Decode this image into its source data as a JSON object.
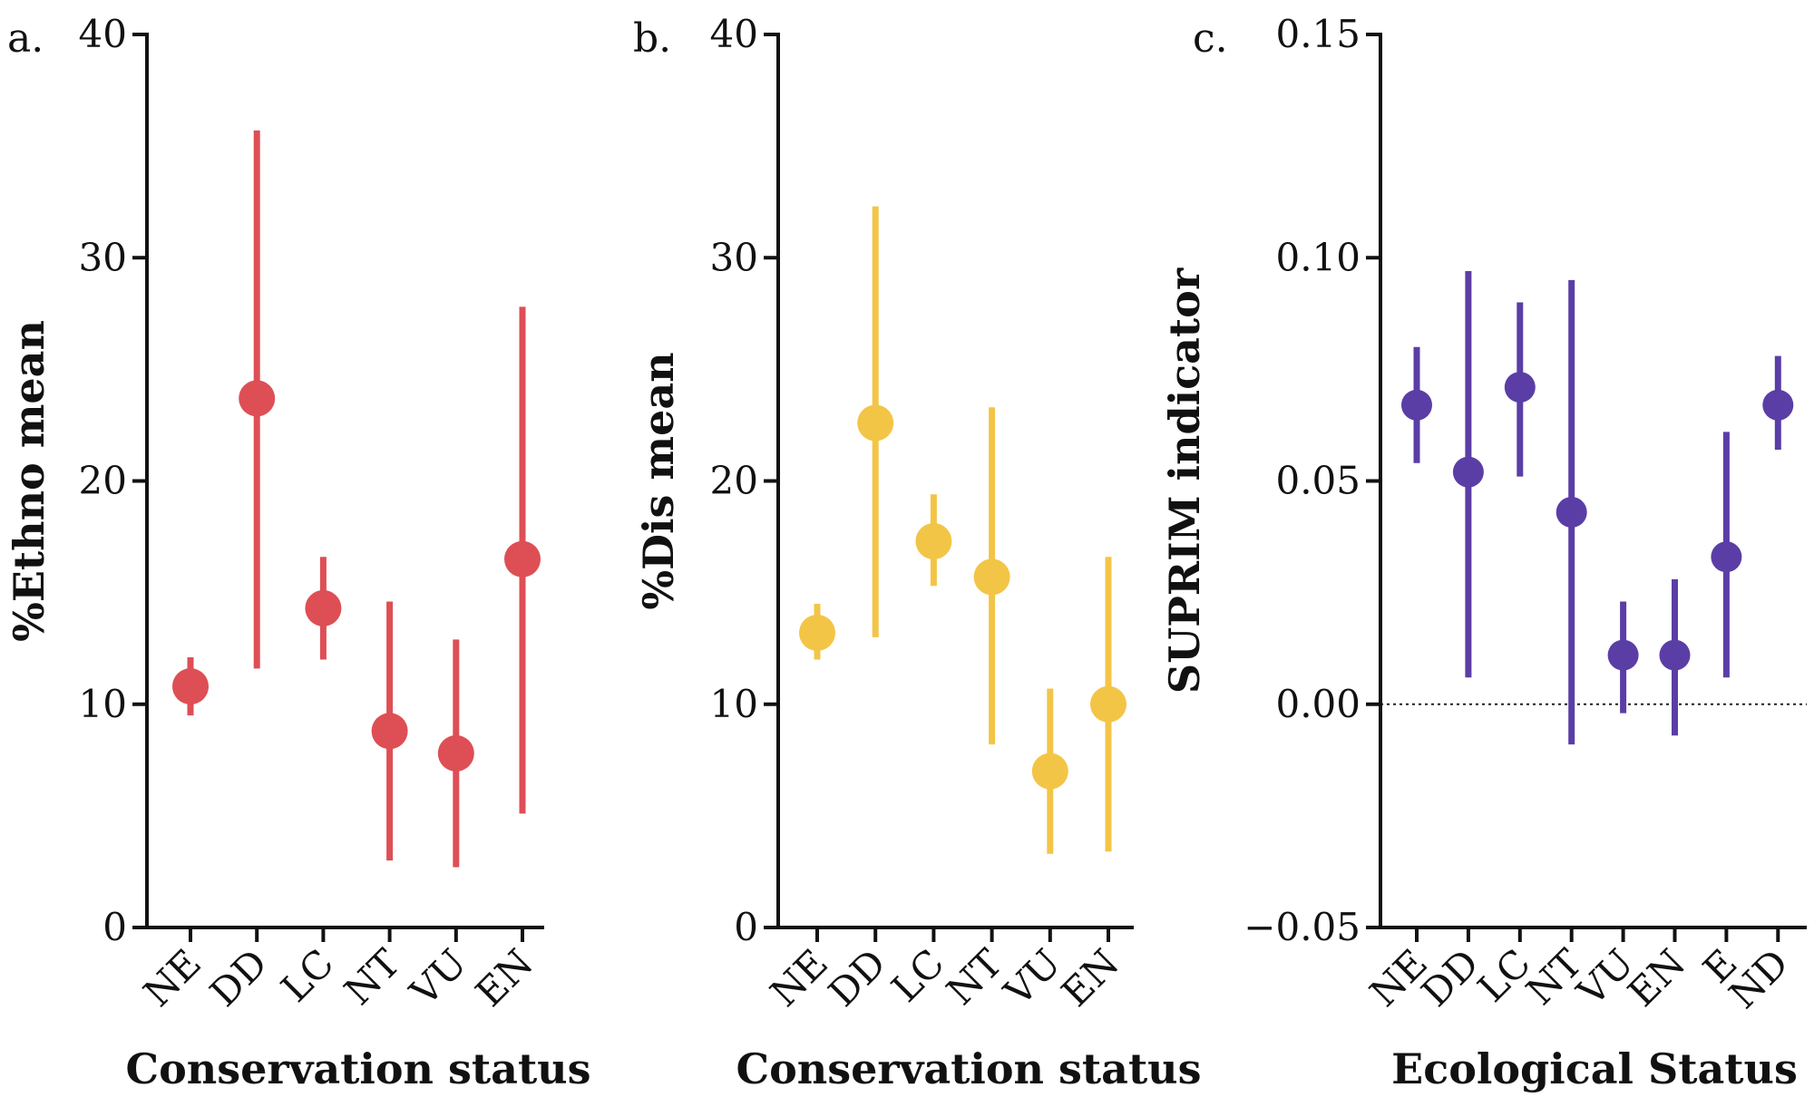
{
  "chart_data": [
    {
      "type": "scatter",
      "panel_label": "a.",
      "xlabel": "Conservation status",
      "ylabel": "%Ethno mean",
      "ylim": [
        0,
        40
      ],
      "yticks": [
        "0",
        "10",
        "20",
        "30",
        "40"
      ],
      "tick_values": [
        0,
        10,
        20,
        30,
        40
      ],
      "categories": [
        "NE",
        "DD",
        "LC",
        "NT",
        "VU",
        "EN"
      ],
      "values": [
        10.8,
        23.7,
        14.3,
        8.8,
        7.8,
        16.5
      ],
      "err_low": [
        9.5,
        11.6,
        12.0,
        3.0,
        2.7,
        5.1
      ],
      "err_high": [
        12.1,
        35.7,
        16.6,
        14.6,
        12.9,
        27.8
      ],
      "color": "#dd4f55",
      "zero_line": false
    },
    {
      "type": "scatter",
      "panel_label": "b.",
      "xlabel": "Conservation status",
      "ylabel": "%Dis mean",
      "ylim": [
        0,
        40
      ],
      "yticks": [
        "0",
        "10",
        "20",
        "30",
        "40"
      ],
      "tick_values": [
        0,
        10,
        20,
        30,
        40
      ],
      "categories": [
        "NE",
        "DD",
        "LC",
        "NT",
        "VU",
        "EN"
      ],
      "values": [
        13.2,
        22.6,
        17.3,
        15.7,
        7.0,
        10.0
      ],
      "err_low": [
        12.0,
        13.0,
        15.3,
        8.2,
        3.3,
        3.4
      ],
      "err_high": [
        14.5,
        32.3,
        19.4,
        23.3,
        10.7,
        16.6
      ],
      "color": "#f3c547",
      "zero_line": false
    },
    {
      "type": "scatter",
      "panel_label": "c.",
      "xlabel": "Ecological Status",
      "ylabel": "SUPRIM indicator",
      "ylim": [
        -0.05,
        0.15
      ],
      "yticks": [
        "−0.05",
        "0.00",
        "0.05",
        "0.10",
        "0.15"
      ],
      "tick_values": [
        -0.05,
        0,
        0.05,
        0.1,
        0.15
      ],
      "categories": [
        "NE",
        "DD",
        "LC",
        "NT",
        "VU",
        "EN",
        "E",
        "ND"
      ],
      "values": [
        0.067,
        0.052,
        0.071,
        0.043,
        0.011,
        0.011,
        0.033,
        0.067
      ],
      "err_low": [
        0.054,
        0.006,
        0.051,
        -0.009,
        -0.002,
        -0.007,
        0.006,
        0.057
      ],
      "err_high": [
        0.08,
        0.097,
        0.09,
        0.095,
        0.023,
        0.028,
        0.061,
        0.078
      ],
      "color": "#5a3ea6",
      "zero_line": true
    }
  ]
}
